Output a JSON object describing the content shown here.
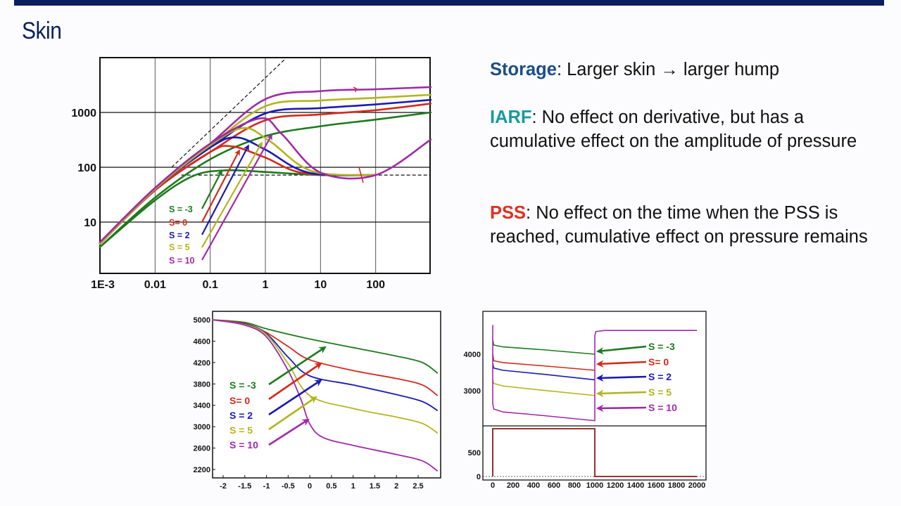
{
  "slide": {
    "title": "Skin",
    "accent_bar_color": "#0b1f5c",
    "title_color": "#0b2259"
  },
  "bullets": [
    {
      "key": "Storage",
      "key_color": "#1a4e8a",
      "text": ": Larger skin → larger hump"
    },
    {
      "key": "IARF",
      "key_color": "#1a9aa0",
      "text": ": No effect on derivative, but has a cumulative effect on the amplitude of pressure"
    },
    {
      "key": "PSS",
      "key_color": "#e0301e",
      "text": ": No effect on the time when the PSS is reached, cumulative effect on pressure remains"
    }
  ],
  "series_colors": {
    "S = -3": "#1c7a1c",
    "S= 0": "#d42a1a",
    "S = 2": "#1a1ab4",
    "S = 5": "#b4b41e",
    "S = 10": "#a02aa8"
  },
  "chart_data": [
    {
      "id": "loglog",
      "type": "line",
      "title": "",
      "xscale": "log",
      "yscale": "log",
      "xlim": [
        0.001,
        1000
      ],
      "ylim": [
        1,
        10000
      ],
      "xticks": [
        "1E-3",
        "0.01",
        "0.1",
        "1",
        "10",
        "100"
      ],
      "yticks": [
        "10",
        "100",
        "1000"
      ],
      "grid": true,
      "legend": [
        "S = -3",
        "S= 0",
        "S = 2",
        "S = 5",
        "S = 10"
      ],
      "legend_position": "lower-left, with arrows pointing at derivative humps",
      "reference_lines": [
        {
          "name": "unit-slope storage line",
          "style": "dashed",
          "from": [
            0.02,
            100
          ],
          "to": [
            2.5,
            8000
          ]
        },
        {
          "name": "IARF stabilization",
          "style": "dashed",
          "y": 72,
          "x_from": 0.03,
          "x_to": 1000
        }
      ],
      "series_pressure": [
        {
          "name": "S = -3",
          "x": [
            0.001,
            0.01,
            0.1,
            1,
            10,
            100,
            1000
          ],
          "y": [
            3.5,
            28,
            140,
            370,
            560,
            740,
            1000
          ]
        },
        {
          "name": "S= 0",
          "x": [
            0.001,
            0.01,
            0.1,
            1,
            10,
            100,
            1000
          ],
          "y": [
            4,
            38,
            190,
            720,
            920,
            1100,
            1450
          ]
        },
        {
          "name": "S = 2",
          "x": [
            0.001,
            0.01,
            0.1,
            1,
            10,
            100,
            1000
          ],
          "y": [
            4,
            40,
            230,
            960,
            1200,
            1400,
            1700
          ]
        },
        {
          "name": "S = 5",
          "x": [
            0.001,
            0.01,
            0.1,
            1,
            10,
            100,
            1000
          ],
          "y": [
            4,
            40,
            250,
            1300,
            1650,
            1850,
            2100
          ]
        },
        {
          "name": "S = 10",
          "x": [
            0.001,
            0.01,
            0.1,
            1,
            10,
            100,
            1000
          ],
          "y": [
            4.3,
            42,
            270,
            1750,
            2450,
            2650,
            2900
          ]
        }
      ],
      "series_derivative": [
        {
          "name": "S = -3",
          "x": [
            0.001,
            0.01,
            0.05,
            0.2,
            1,
            10,
            100
          ],
          "y": [
            3.5,
            25,
            70,
            88,
            82,
            72,
            72
          ]
        },
        {
          "name": "S= 0",
          "x": [
            0.001,
            0.01,
            0.1,
            0.25,
            1,
            5,
            100
          ],
          "y": [
            4,
            38,
            190,
            240,
            150,
            78,
            72
          ]
        },
        {
          "name": "S = 2",
          "x": [
            0.001,
            0.01,
            0.1,
            0.3,
            1,
            6,
            100
          ],
          "y": [
            4,
            40,
            230,
            350,
            210,
            80,
            72
          ]
        },
        {
          "name": "S = 5",
          "x": [
            0.001,
            0.01,
            0.1,
            0.4,
            1.2,
            7,
            100
          ],
          "y": [
            4,
            40,
            250,
            520,
            300,
            85,
            72
          ]
        },
        {
          "name": "S = 10",
          "x": [
            0.001,
            0.01,
            0.1,
            0.8,
            2,
            10,
            100,
            1000
          ],
          "y": [
            4.3,
            42,
            270,
            780,
            400,
            80,
            72,
            320
          ]
        }
      ]
    },
    {
      "id": "semilog",
      "type": "line",
      "title": "",
      "xlabel": "",
      "ylabel": "",
      "xlim": [
        -2.25,
        2.95
      ],
      "ylim": [
        2100,
        5100
      ],
      "xticks": [
        "-2",
        "-1.5",
        "-1",
        "-0.5",
        "0",
        "0.5",
        "1",
        "1.5",
        "2",
        "2.5"
      ],
      "yticks": [
        "5000",
        "4600",
        "4200",
        "3800",
        "3400",
        "3000",
        "2600",
        "2200"
      ],
      "grid": false,
      "legend": [
        "S = -3",
        "S= 0",
        "S = 2",
        "S = 5",
        "S = 10"
      ],
      "series": [
        {
          "name": "S = -3",
          "x": [
            -2.25,
            -1.5,
            -1,
            0,
            1,
            2,
            2.6,
            2.95
          ],
          "y": [
            5000,
            4950,
            4830,
            4640,
            4480,
            4320,
            4200,
            4000
          ]
        },
        {
          "name": "S= 0",
          "x": [
            -2.25,
            -1.5,
            -1,
            -0.5,
            0,
            1,
            2,
            2.6,
            2.95
          ],
          "y": [
            5000,
            4930,
            4760,
            4500,
            4250,
            4050,
            3900,
            3780,
            3580
          ]
        },
        {
          "name": "S = 2",
          "x": [
            -2.25,
            -1.5,
            -1,
            -0.5,
            0,
            1,
            2,
            2.6,
            2.95
          ],
          "y": [
            5000,
            4920,
            4740,
            4300,
            3950,
            3780,
            3600,
            3470,
            3300
          ]
        },
        {
          "name": "S = 5",
          "x": [
            -2.25,
            -1.5,
            -1,
            -0.5,
            0,
            1,
            2,
            2.6,
            2.95
          ],
          "y": [
            5000,
            4910,
            4720,
            4180,
            3580,
            3340,
            3180,
            3060,
            2880
          ]
        },
        {
          "name": "S = 10",
          "x": [
            -2.25,
            -1.5,
            -1,
            -0.5,
            -0.2,
            0,
            0.3,
            1,
            2,
            2.6,
            2.95
          ],
          "y": [
            5000,
            4900,
            4680,
            4050,
            3500,
            3050,
            2800,
            2650,
            2480,
            2360,
            2170
          ]
        }
      ]
    },
    {
      "id": "history",
      "type": "line",
      "title": "",
      "xlim": [
        -100,
        2100
      ],
      "xticks": [
        "0",
        "200",
        "400",
        "600",
        "800",
        "1000",
        "1200",
        "1400",
        "1600",
        "1800",
        "2000"
      ],
      "panels": [
        {
          "name": "pressure",
          "yticks": [
            "4000",
            "3000"
          ],
          "ylim": [
            1850,
            4900
          ],
          "series": [
            {
              "name": "S = -3",
              "x": [
                0,
                10,
                100,
                500,
                1000
              ],
              "y": [
                4400,
                4250,
                4200,
                4120,
                4000
              ]
            },
            {
              "name": "S= 0",
              "x": [
                0,
                10,
                100,
                500,
                1000
              ],
              "y": [
                4000,
                3820,
                3770,
                3680,
                3560
              ]
            },
            {
              "name": "S = 2",
              "x": [
                0,
                10,
                100,
                500,
                1000
              ],
              "y": [
                3750,
                3620,
                3560,
                3450,
                3300
              ]
            },
            {
              "name": "S = 5",
              "x": [
                0,
                10,
                100,
                500,
                1000
              ],
              "y": [
                3300,
                3200,
                3130,
                3010,
                2870
              ]
            },
            {
              "name": "S = 10",
              "x": [
                0,
                0,
                10,
                100,
                500,
                1000,
                1000,
                1010,
                1100,
                2000
              ],
              "y": [
                4800,
                2650,
                2500,
                2420,
                2320,
                2180,
                4500,
                4620,
                4650,
                4650
              ]
            }
          ],
          "legend": [
            "S = -3",
            "S= 0",
            "S = 2",
            "S = 5",
            "S = 10"
          ]
        },
        {
          "name": "rate",
          "yticks": [
            "500",
            "0"
          ],
          "ylim": [
            -50,
            1050
          ],
          "series": [
            {
              "name": "rate",
              "color": "#8b1a1a",
              "x": [
                0,
                0,
                1000,
                1000,
                2000
              ],
              "y": [
                0,
                1000,
                1000,
                0,
                0
              ]
            }
          ]
        }
      ]
    }
  ]
}
